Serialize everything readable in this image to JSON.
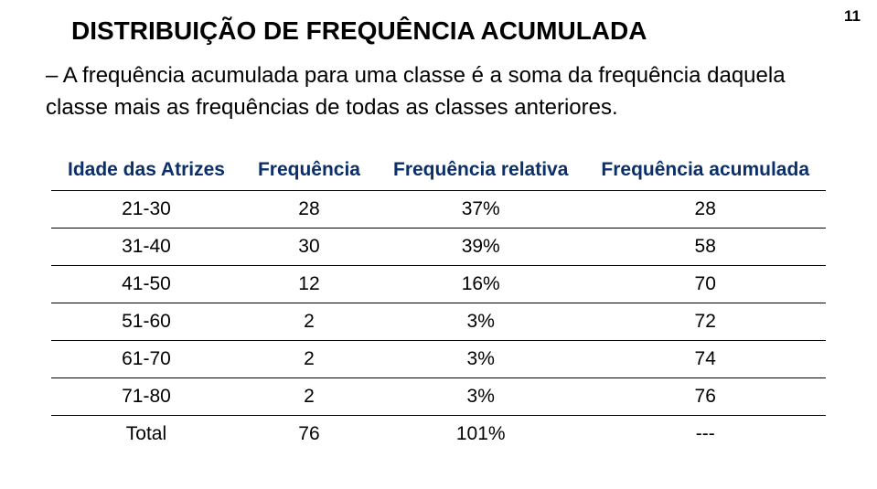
{
  "page_number": "11",
  "title": "DISTRIBUIÇÃO DE FREQUÊNCIA ACUMULADA",
  "body_text": "– A frequência acumulada para uma classe é a soma da frequência daquela classe mais as frequências de todas as classes anteriores.",
  "table": {
    "header_color": "#0a2f6b",
    "columns": [
      "Idade das Atrizes",
      "Frequência",
      "Frequência relativa",
      "Frequência acumulada"
    ],
    "rows": [
      [
        "21-30",
        "28",
        "37%",
        "28"
      ],
      [
        "31-40",
        "30",
        "39%",
        "58"
      ],
      [
        "41-50",
        "12",
        "16%",
        "70"
      ],
      [
        "51-60",
        "2",
        "3%",
        "72"
      ],
      [
        "61-70",
        "2",
        "3%",
        "74"
      ],
      [
        "71-80",
        "2",
        "3%",
        "76"
      ],
      [
        "Total",
        "76",
        "101%",
        "---"
      ]
    ]
  }
}
